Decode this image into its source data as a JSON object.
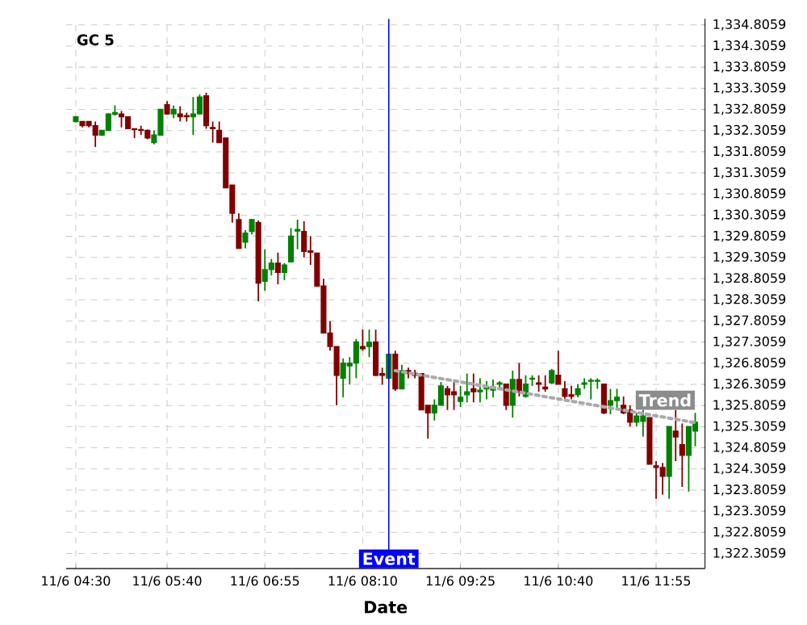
{
  "chart_data": {
    "type": "candlestick",
    "title": "GC 5",
    "xlabel": "Date",
    "categories": [
      "11/6 04:30",
      null,
      null,
      null,
      null,
      null,
      null,
      null,
      null,
      null,
      null,
      null,
      null,
      null,
      "11/6 05:40",
      null,
      null,
      null,
      null,
      null,
      null,
      null,
      null,
      null,
      null,
      null,
      null,
      null,
      null,
      "11/6 06:55",
      null,
      null,
      null,
      null,
      null,
      null,
      null,
      null,
      null,
      null,
      null,
      null,
      null,
      null,
      "11/6 08:10",
      null,
      null,
      null,
      null,
      null,
      null,
      null,
      null,
      null,
      null,
      null,
      null,
      null,
      null,
      "11/6 09:25",
      null,
      null,
      null,
      null,
      null,
      null,
      null,
      null,
      null,
      null,
      null,
      null,
      null,
      null,
      "11/6 10:40",
      null,
      null,
      null,
      null,
      null,
      null,
      null,
      null,
      null,
      null,
      null,
      null,
      null,
      null,
      "11/6 11:55",
      null,
      null,
      null,
      null,
      null,
      null
    ],
    "ohlc": [
      [
        1332.52,
        1332.65,
        1332.5,
        1332.63
      ],
      [
        1332.52,
        1332.52,
        1332.38,
        1332.42
      ],
      [
        1332.52,
        1332.52,
        1332.38,
        1332.42
      ],
      [
        1332.42,
        1332.52,
        1331.92,
        1332.2
      ],
      [
        1332.2,
        1332.31,
        1332.18,
        1332.31
      ],
      [
        1332.31,
        1332.72,
        1332.3,
        1332.7
      ],
      [
        1332.69,
        1332.9,
        1332.66,
        1332.73
      ],
      [
        1332.7,
        1332.77,
        1332.38,
        1332.63
      ],
      [
        1332.63,
        1332.63,
        1332.35,
        1332.35
      ],
      [
        1332.35,
        1332.35,
        1332.13,
        1332.33
      ],
      [
        1332.33,
        1332.42,
        1332.2,
        1332.31
      ],
      [
        1332.31,
        1332.33,
        1332.1,
        1332.13
      ],
      [
        1332.02,
        1332.31,
        1331.98,
        1332.2
      ],
      [
        1332.2,
        1332.81,
        1332.2,
        1332.81
      ],
      [
        1332.92,
        1333.0,
        1332.68,
        1332.7
      ],
      [
        1332.7,
        1332.9,
        1332.6,
        1332.81
      ],
      [
        1332.7,
        1332.88,
        1332.52,
        1332.63
      ],
      [
        1332.66,
        1332.73,
        1332.52,
        1332.63
      ],
      [
        1332.63,
        1333.1,
        1332.2,
        1332.7
      ],
      [
        1332.7,
        1333.16,
        1332.7,
        1333.1
      ],
      [
        1333.13,
        1333.2,
        1332.35,
        1332.42
      ],
      [
        1332.38,
        1332.52,
        1332.02,
        1332.35
      ],
      [
        1332.31,
        1332.52,
        1332.02,
        1332.02
      ],
      [
        1332.13,
        1332.13,
        1330.95,
        1330.95
      ],
      [
        1331.02,
        1331.02,
        1330.13,
        1330.35
      ],
      [
        1330.2,
        1330.35,
        1329.52,
        1329.52
      ],
      [
        1329.67,
        1329.95,
        1329.52,
        1329.88
      ],
      [
        1329.92,
        1330.22,
        1329.85,
        1330.2
      ],
      [
        1330.13,
        1330.18,
        1328.27,
        1328.7
      ],
      [
        1328.74,
        1329.5,
        1328.52,
        1329.02
      ],
      [
        1329.02,
        1329.27,
        1328.88,
        1329.17
      ],
      [
        1329.17,
        1329.42,
        1328.67,
        1328.95
      ],
      [
        1328.95,
        1329.17,
        1328.77,
        1329.13
      ],
      [
        1329.2,
        1330.0,
        1329.2,
        1329.81
      ],
      [
        1329.93,
        1330.2,
        1329.5,
        1329.97
      ],
      [
        1329.92,
        1330.16,
        1329.31,
        1329.45
      ],
      [
        1329.46,
        1329.81,
        1329.13,
        1329.43
      ],
      [
        1329.41,
        1329.41,
        1328.63,
        1328.63
      ],
      [
        1328.63,
        1328.8,
        1327.52,
        1327.52
      ],
      [
        1327.52,
        1327.8,
        1327.1,
        1327.2
      ],
      [
        1327.2,
        1327.2,
        1325.81,
        1326.52
      ],
      [
        1326.45,
        1326.92,
        1326.0,
        1326.81
      ],
      [
        1326.74,
        1326.95,
        1326.3,
        1326.81
      ],
      [
        1326.81,
        1327.38,
        1326.45,
        1327.31
      ],
      [
        1327.2,
        1327.6,
        1327.1,
        1327.15
      ],
      [
        1327.2,
        1327.6,
        1326.95,
        1327.3
      ],
      [
        1327.31,
        1327.6,
        1326.5,
        1326.52
      ],
      [
        1326.56,
        1326.7,
        1326.3,
        1326.52
      ],
      [
        1326.45,
        1327.02,
        1326.45,
        1327.02
      ],
      [
        1327.02,
        1327.1,
        1326.15,
        1326.2
      ],
      [
        1326.2,
        1326.77,
        1326.2,
        1326.63
      ],
      [
        1326.63,
        1326.7,
        1326.45,
        1326.56
      ],
      [
        1326.57,
        1326.65,
        1326.45,
        1326.52
      ],
      [
        1326.56,
        1326.56,
        1325.7,
        1325.7
      ],
      [
        1325.81,
        1325.81,
        1325.02,
        1325.63
      ],
      [
        1325.63,
        1325.95,
        1325.45,
        1325.81
      ],
      [
        1325.81,
        1326.36,
        1325.81,
        1326.27
      ],
      [
        1326.2,
        1326.27,
        1325.7,
        1326.06
      ],
      [
        1326.13,
        1326.36,
        1325.7,
        1326.06
      ],
      [
        1325.9,
        1326.27,
        1325.77,
        1326.0
      ],
      [
        1326.06,
        1326.56,
        1325.88,
        1326.13
      ],
      [
        1326.2,
        1326.56,
        1325.88,
        1326.13
      ],
      [
        1326.13,
        1326.45,
        1325.88,
        1326.17
      ],
      [
        1326.2,
        1326.38,
        1325.95,
        1326.24
      ],
      [
        1326.17,
        1326.42,
        1326.0,
        1326.24
      ],
      [
        1326.31,
        1326.38,
        1326.17,
        1326.34
      ],
      [
        1326.31,
        1326.31,
        1325.7,
        1325.81
      ],
      [
        1325.81,
        1326.63,
        1325.52,
        1326.42
      ],
      [
        1326.42,
        1326.81,
        1326.02,
        1326.13
      ],
      [
        1326.02,
        1326.52,
        1325.99,
        1326.31
      ],
      [
        1326.43,
        1326.52,
        1326.27,
        1326.45
      ],
      [
        1326.34,
        1326.52,
        1326.13,
        1326.31
      ],
      [
        1326.24,
        1326.52,
        1326.13,
        1326.2
      ],
      [
        1326.34,
        1326.67,
        1326.31,
        1326.63
      ],
      [
        1326.52,
        1327.1,
        1326.31,
        1326.31
      ],
      [
        1326.2,
        1326.38,
        1325.95,
        1326.02
      ],
      [
        1326.06,
        1326.27,
        1325.95,
        1326.02
      ],
      [
        1326.06,
        1326.31,
        1326.0,
        1326.2
      ],
      [
        1326.31,
        1326.45,
        1326.2,
        1326.34
      ],
      [
        1326.38,
        1326.45,
        1325.95,
        1326.4
      ],
      [
        1326.38,
        1326.45,
        1326.2,
        1326.4
      ],
      [
        1326.31,
        1326.31,
        1325.6,
        1325.63
      ],
      [
        1325.81,
        1326.2,
        1325.6,
        1325.92
      ],
      [
        1325.92,
        1326.2,
        1325.7,
        1326.0
      ],
      [
        1325.81,
        1326.02,
        1325.6,
        1325.63
      ],
      [
        1325.7,
        1325.81,
        1325.31,
        1325.41
      ],
      [
        1325.41,
        1325.63,
        1325.31,
        1325.56
      ],
      [
        1325.43,
        1325.7,
        1325.07,
        1325.56
      ],
      [
        1325.52,
        1325.52,
        1324.42,
        1324.42
      ],
      [
        1324.38,
        1324.49,
        1323.6,
        1324.34
      ],
      [
        1324.34,
        1324.45,
        1323.7,
        1324.13
      ],
      [
        1324.13,
        1325.31,
        1323.6,
        1325.31
      ],
      [
        1325.2,
        1325.7,
        1324.49,
        1325.06
      ],
      [
        1324.88,
        1325.38,
        1323.88,
        1324.63
      ],
      [
        1324.63,
        1325.31,
        1323.77,
        1325.31
      ],
      [
        1325.2,
        1325.63,
        1324.84,
        1325.41
      ]
    ],
    "series": [
      {
        "name": "Trend",
        "type": "line",
        "values": [
          null,
          null,
          null,
          null,
          null,
          null,
          null,
          null,
          null,
          null,
          null,
          null,
          null,
          null,
          null,
          null,
          null,
          null,
          null,
          null,
          null,
          null,
          null,
          null,
          null,
          null,
          null,
          null,
          null,
          null,
          null,
          null,
          null,
          null,
          null,
          null,
          null,
          null,
          null,
          null,
          null,
          null,
          null,
          null,
          null,
          null,
          null,
          null,
          null,
          1326.63,
          null,
          null,
          null,
          null,
          null,
          null,
          null,
          null,
          null,
          null,
          null,
          null,
          null,
          null,
          null,
          null,
          null,
          null,
          null,
          null,
          null,
          null,
          null,
          null,
          null,
          null,
          null,
          null,
          null,
          null,
          null,
          null,
          null,
          null,
          null,
          null,
          null,
          null,
          null,
          null,
          null,
          null,
          null,
          null,
          null,
          1325.4
        ],
        "color": "#aaaaaa",
        "line_style": "dotted"
      }
    ],
    "ylim": [
      1321.95,
      1334.95
    ],
    "yticks": [
      {
        "value": 1322.3059,
        "label": "1,322.3059"
      },
      {
        "value": 1322.8059,
        "label": "1,322.8059"
      },
      {
        "value": 1323.3059,
        "label": "1,323.3059"
      },
      {
        "value": 1323.8059,
        "label": "1,323.8059"
      },
      {
        "value": 1324.3059,
        "label": "1,324.3059"
      },
      {
        "value": 1324.8059,
        "label": "1,324.8059"
      },
      {
        "value": 1325.3059,
        "label": "1,325.3059"
      },
      {
        "value": 1325.8059,
        "label": "1,325.8059"
      },
      {
        "value": 1326.3059,
        "label": "1,326.3059"
      },
      {
        "value": 1326.8059,
        "label": "1,326.8059"
      },
      {
        "value": 1327.3059,
        "label": "1,327.3059"
      },
      {
        "value": 1327.8059,
        "label": "1,327.8059"
      },
      {
        "value": 1328.3059,
        "label": "1,328.3059"
      },
      {
        "value": 1328.8059,
        "label": "1,328.8059"
      },
      {
        "value": 1329.3059,
        "label": "1,329.3059"
      },
      {
        "value": 1329.8059,
        "label": "1,329.8059"
      },
      {
        "value": 1330.3059,
        "label": "1,330.3059"
      },
      {
        "value": 1330.8059,
        "label": "1,330.8059"
      },
      {
        "value": 1331.3059,
        "label": "1,331.3059"
      },
      {
        "value": 1331.8059,
        "label": "1,331.8059"
      },
      {
        "value": 1332.3059,
        "label": "1,332.3059"
      },
      {
        "value": 1332.8059,
        "label": "1,332.8059"
      },
      {
        "value": 1333.3059,
        "label": "1,333.3059"
      },
      {
        "value": 1333.8059,
        "label": "1,333.8059"
      },
      {
        "value": 1334.3059,
        "label": "1,334.3059"
      },
      {
        "value": 1334.8059,
        "label": "1,334.8059"
      }
    ],
    "grid": true,
    "annotations": [
      "Event"
    ]
  }
}
